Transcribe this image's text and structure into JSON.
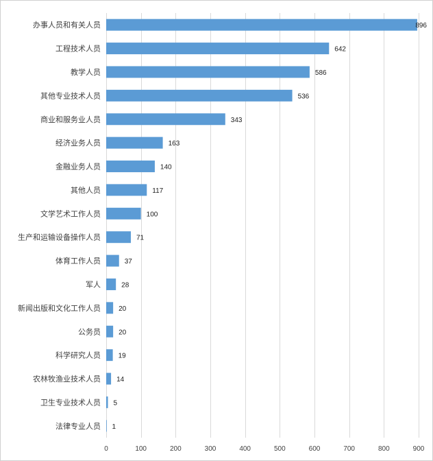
{
  "chart_data": {
    "type": "bar",
    "orientation": "horizontal",
    "categories": [
      "办事人员和有关人员",
      "工程技术人员",
      "教学人员",
      "其他专业技术人员",
      "商业和服务业人员",
      "经济业务人员",
      "金融业务人员",
      "其他人员",
      "文学艺术工作人员",
      "生产和运输设备操作人员",
      "体育工作人员",
      "军人",
      "新闻出版和文化工作人员",
      "公务员",
      "科学研究人员",
      "农林牧渔业技术人员",
      "卫生专业技术人员",
      "法律专业人员"
    ],
    "values": [
      896,
      642,
      586,
      536,
      343,
      163,
      140,
      117,
      100,
      71,
      37,
      28,
      20,
      20,
      19,
      14,
      5,
      1
    ],
    "title": "",
    "xlabel": "",
    "ylabel": "",
    "xlim": [
      0,
      900
    ],
    "xticks": [
      0,
      100,
      200,
      300,
      400,
      500,
      600,
      700,
      800,
      900
    ],
    "grid": "vertical",
    "data_labels": true,
    "bar_color": "#5b9bd5",
    "grid_color": "#d9d9d9"
  }
}
